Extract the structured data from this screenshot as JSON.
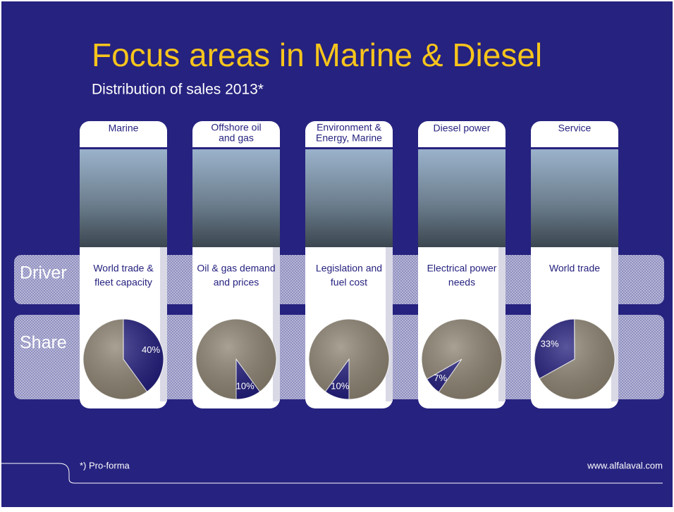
{
  "title": "Focus areas in Marine & Diesel",
  "subtitle": "Distribution of sales 2013*",
  "row_labels": [
    "Driver",
    "Share"
  ],
  "footnote": "*) Pro-forma",
  "url": "www.alfalaval.com",
  "drivers": [
    [
      "World trade &",
      "fleet capacity"
    ],
    [
      "Oil & gas demand",
      "and prices"
    ],
    [
      "Legislation and",
      "fuel cost"
    ],
    [
      "Electrical power",
      "needs"
    ],
    [
      "World trade"
    ]
  ],
  "chart_data": [
    {
      "type": "pie",
      "title": [
        "Marine"
      ],
      "values": [
        40,
        60
      ],
      "value_labels": [
        "40%",
        null
      ],
      "colors": [
        "#221d7c",
        "#8c8271"
      ]
    },
    {
      "type": "pie",
      "title": [
        "Offshore oil",
        "and gas"
      ],
      "values": [
        10,
        90
      ],
      "value_labels": [
        "10%",
        null
      ],
      "colors": [
        "#221d7c",
        "#8c8271"
      ]
    },
    {
      "type": "pie",
      "title": [
        "Environment &",
        "Energy, Marine"
      ],
      "values": [
        10,
        90
      ],
      "value_labels": [
        "10%",
        null
      ],
      "colors": [
        "#221d7c",
        "#8c8271"
      ]
    },
    {
      "type": "pie",
      "title": [
        "Diesel power"
      ],
      "values": [
        7,
        93
      ],
      "value_labels": [
        "7%",
        null
      ],
      "colors": [
        "#221d7c",
        "#8c8271"
      ]
    },
    {
      "type": "pie",
      "title": [
        "Service"
      ],
      "values": [
        33,
        67
      ],
      "value_labels": [
        "33%",
        null
      ],
      "colors": [
        "#221d7c",
        "#8c8271"
      ]
    }
  ]
}
